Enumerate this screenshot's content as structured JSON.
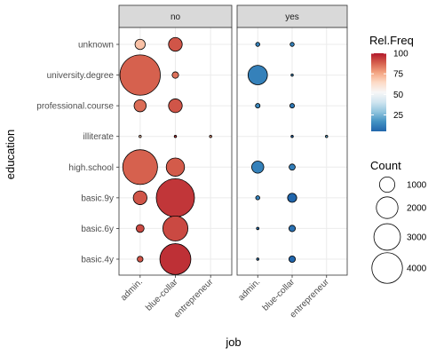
{
  "chart_data": {
    "type": "scatter",
    "xlabel": "job",
    "ylabel": "education",
    "facet_variable_values": [
      "no",
      "yes"
    ],
    "x_categories": [
      "admin.",
      "blue-collar",
      "entrepreneur"
    ],
    "y_categories": [
      "basic.4y",
      "basic.6y",
      "basic.9y",
      "high.school",
      "illiterate",
      "professional.course",
      "university.degree",
      "unknown"
    ],
    "points": [
      {
        "facet": "no",
        "x": "admin.",
        "y": "unknown",
        "count": 250,
        "rel_freq": 70
      },
      {
        "facet": "no",
        "x": "admin.",
        "y": "university.degree",
        "count": 3900,
        "rel_freq": 88
      },
      {
        "facet": "no",
        "x": "admin.",
        "y": "professional.course",
        "count": 350,
        "rel_freq": 86
      },
      {
        "facet": "no",
        "x": "admin.",
        "y": "illiterate",
        "count": 0,
        "rel_freq": 70
      },
      {
        "facet": "no",
        "x": "admin.",
        "y": "high.school",
        "count": 2900,
        "rel_freq": 88
      },
      {
        "facet": "no",
        "x": "admin.",
        "y": "basic.9y",
        "count": 450,
        "rel_freq": 90
      },
      {
        "facet": "no",
        "x": "admin.",
        "y": "basic.6y",
        "count": 150,
        "rel_freq": 92
      },
      {
        "facet": "no",
        "x": "admin.",
        "y": "basic.4y",
        "count": 80,
        "rel_freq": 90
      },
      {
        "facet": "no",
        "x": "blue-collar",
        "y": "unknown",
        "count": 450,
        "rel_freq": 90
      },
      {
        "facet": "no",
        "x": "blue-collar",
        "y": "university.degree",
        "count": 100,
        "rel_freq": 85
      },
      {
        "facet": "no",
        "x": "blue-collar",
        "y": "professional.course",
        "count": 450,
        "rel_freq": 90
      },
      {
        "facet": "no",
        "x": "blue-collar",
        "y": "illiterate",
        "count": 10,
        "rel_freq": 95
      },
      {
        "facet": "no",
        "x": "blue-collar",
        "y": "high.school",
        "count": 800,
        "rel_freq": 89
      },
      {
        "facet": "no",
        "x": "blue-collar",
        "y": "basic.9y",
        "count": 3500,
        "rel_freq": 95
      },
      {
        "facet": "no",
        "x": "blue-collar",
        "y": "basic.6y",
        "count": 1500,
        "rel_freq": 92
      },
      {
        "facet": "no",
        "x": "blue-collar",
        "y": "basic.4y",
        "count": 2300,
        "rel_freq": 96
      },
      {
        "facet": "no",
        "x": "entrepreneur",
        "y": "illiterate",
        "count": 5,
        "rel_freq": 80
      },
      {
        "facet": "yes",
        "x": "admin.",
        "y": "unknown",
        "count": 40,
        "rel_freq": 12
      },
      {
        "facet": "yes",
        "x": "admin.",
        "y": "university.degree",
        "count": 900,
        "rel_freq": 12
      },
      {
        "facet": "yes",
        "x": "admin.",
        "y": "professional.course",
        "count": 50,
        "rel_freq": 14
      },
      {
        "facet": "yes",
        "x": "admin.",
        "y": "high.school",
        "count": 350,
        "rel_freq": 12
      },
      {
        "facet": "yes",
        "x": "admin.",
        "y": "basic.9y",
        "count": 40,
        "rel_freq": 12
      },
      {
        "facet": "yes",
        "x": "admin.",
        "y": "basic.6y",
        "count": 15,
        "rel_freq": 8
      },
      {
        "facet": "yes",
        "x": "admin.",
        "y": "basic.4y",
        "count": 10,
        "rel_freq": 10
      },
      {
        "facet": "yes",
        "x": "blue-collar",
        "y": "unknown",
        "count": 40,
        "rel_freq": 12
      },
      {
        "facet": "yes",
        "x": "blue-collar",
        "y": "university.degree",
        "count": 10,
        "rel_freq": 15
      },
      {
        "facet": "yes",
        "x": "blue-collar",
        "y": "professional.course",
        "count": 50,
        "rel_freq": 10
      },
      {
        "facet": "yes",
        "x": "blue-collar",
        "y": "illiterate",
        "count": 0,
        "rel_freq": 5
      },
      {
        "facet": "yes",
        "x": "blue-collar",
        "y": "high.school",
        "count": 90,
        "rel_freq": 11
      },
      {
        "facet": "yes",
        "x": "blue-collar",
        "y": "basic.9y",
        "count": 200,
        "rel_freq": 5
      },
      {
        "facet": "yes",
        "x": "blue-collar",
        "y": "basic.6y",
        "count": 100,
        "rel_freq": 8
      },
      {
        "facet": "yes",
        "x": "blue-collar",
        "y": "basic.4y",
        "count": 100,
        "rel_freq": 5
      },
      {
        "facet": "yes",
        "x": "entrepreneur",
        "y": "illiterate",
        "count": 3,
        "rel_freq": 20
      }
    ],
    "legend_color": {
      "title": "Rel.Freq",
      "breaks": [
        25,
        50,
        75,
        100
      ],
      "range": [
        5,
        100
      ],
      "colors": [
        "#2166ac",
        "#4393c3",
        "#92c5de",
        "#d1e5f0",
        "#f7f7f7",
        "#fddbc7",
        "#f4a582",
        "#d6604d",
        "#b2182b"
      ]
    },
    "legend_size": {
      "title": "Count",
      "breaks": [
        1000,
        2000,
        3000,
        4000
      ],
      "max": 4000
    },
    "grid": true,
    "legend_position": "right"
  }
}
